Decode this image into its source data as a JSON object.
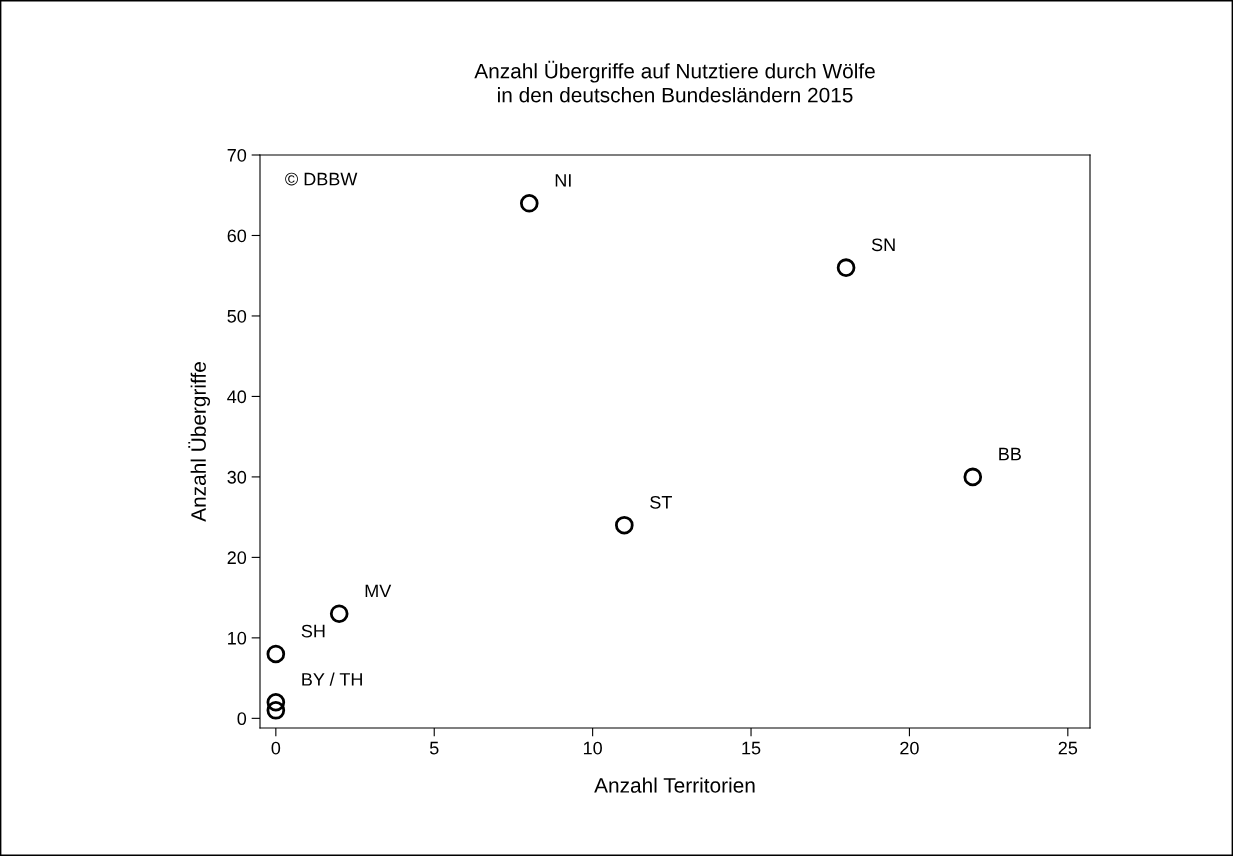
{
  "chart_data": {
    "type": "scatter",
    "title": "Anzahl Übergriffe auf Nutztiere durch Wölfe\nin den deutschen Bundesländern 2015",
    "xlabel": "Anzahl Territorien",
    "ylabel": "Anzahl Übergriffe",
    "x": [
      8,
      18,
      22,
      11,
      2,
      0,
      0,
      0
    ],
    "series": [
      {
        "color": "#000000",
        "values": [
          64,
          56,
          30,
          24,
          13,
          8,
          2,
          1
        ]
      }
    ],
    "marker": "circle",
    "grid": false,
    "legend": false,
    "xlim": [
      -0.5,
      25.7
    ],
    "ylim": [
      -1.2,
      70
    ],
    "xticks": [
      0,
      5,
      10,
      15,
      20,
      25
    ],
    "yticks": [
      0,
      10,
      20,
      30,
      40,
      50,
      60,
      70
    ],
    "annotations": [
      "© DBBW",
      {
        "text": "NI",
        "x": 8,
        "y": 64
      },
      {
        "text": "SN",
        "x": 18,
        "y": 56
      },
      {
        "text": "BB",
        "x": 22,
        "y": 30
      },
      {
        "text": "ST",
        "x": 11,
        "y": 24
      },
      {
        "text": "MV",
        "x": 2,
        "y": 13
      },
      {
        "text": "SH",
        "x": 0,
        "y": 8
      },
      {
        "text": "BY / TH",
        "x": 0,
        "y": 2
      }
    ]
  }
}
